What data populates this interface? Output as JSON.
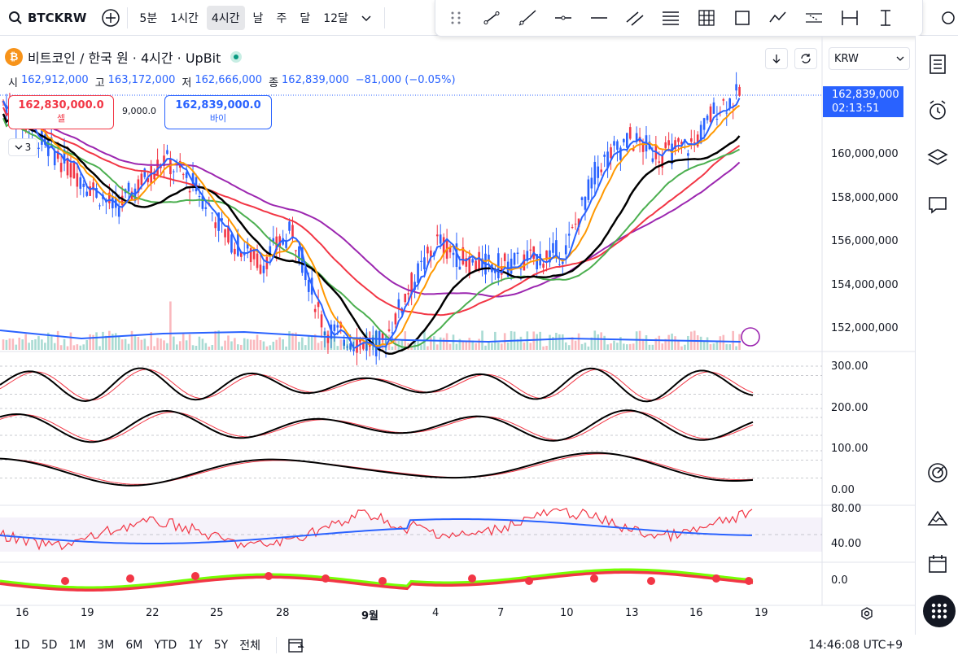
{
  "toolbar": {
    "symbol": "BTCKRW",
    "intervals": [
      "5분",
      "1시간",
      "4시간",
      "날",
      "주",
      "달",
      "12달"
    ],
    "active_interval": "4시간"
  },
  "legend": {
    "title": "비트코인 / 한국 원 · 4시간 · UpBit",
    "logo_letter": "₿",
    "open_label": "시",
    "open": "162,912,000",
    "high_label": "고",
    "high": "163,172,000",
    "low_label": "저",
    "low": "162,666,000",
    "close_label": "종",
    "close": "162,839,000",
    "change": "−81,000 (−0.05%)",
    "collapse_count": "3"
  },
  "trade": {
    "sell_price": "162,830,000.0",
    "sell_label": "셀",
    "buy_price": "162,839,000.0",
    "buy_label": "바이",
    "spread": "9,000.0"
  },
  "currency": "KRW",
  "last_price": {
    "price": "162,839,000",
    "countdown": "02:13:51"
  },
  "price_axis": [
    "160,000,000",
    "158,000,000",
    "156,000,000",
    "154,000,000",
    "152,000,000"
  ],
  "osc_axis": [
    "300.00",
    "200.00",
    "100.00",
    "0.00"
  ],
  "rsi_axis": [
    "80.00",
    "40.00"
  ],
  "macd_axis": [
    "0.0"
  ],
  "time_axis": [
    "16",
    "19",
    "22",
    "25",
    "28",
    "9월",
    "4",
    "7",
    "10",
    "13",
    "16",
    "19"
  ],
  "ranges": [
    "1D",
    "5D",
    "1M",
    "3M",
    "6M",
    "YTD",
    "1Y",
    "5Y",
    "전체"
  ],
  "clock": "14:46:08 UTC+9",
  "colors": {
    "up": "#f23645",
    "down": "#2962ff",
    "accent": "#2962ff",
    "ma_black": "#000000",
    "ma_purple": "#9c27b0",
    "ma_green": "#4caf50",
    "ma_orange": "#ff9800"
  }
}
